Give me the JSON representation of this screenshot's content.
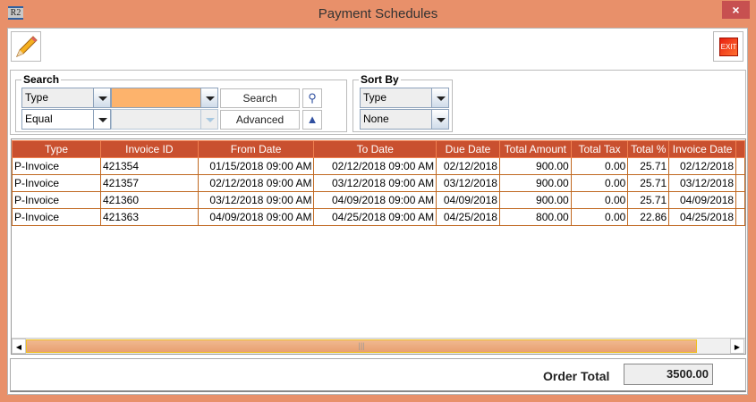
{
  "window": {
    "title": "Payment Schedules",
    "app_icon_text": "R2",
    "close": "×"
  },
  "toolbar": {
    "edit_icon": "pencil-icon",
    "exit_label": "EXIT"
  },
  "search": {
    "legend": "Search",
    "field": "Type",
    "value": "",
    "operator": "Equal",
    "value2": "",
    "search_label": "Search",
    "advanced_label": "Advanced",
    "accent": "#FDB36C"
  },
  "sort": {
    "legend": "Sort By",
    "field": "Type",
    "order": "None"
  },
  "table": {
    "headers": [
      "Type",
      "Invoice ID",
      "From Date",
      "To Date",
      "Due Date",
      "Total Amount",
      "Total Tax",
      "Total %",
      "Invoice Date"
    ],
    "rows": [
      [
        "P-Invoice",
        "421354",
        "01/15/2018 09:00 AM",
        "02/12/2018 09:00 AM",
        "02/12/2018",
        "900.00",
        "0.00",
        "25.71",
        "02/12/2018"
      ],
      [
        "P-Invoice",
        "421357",
        "02/12/2018 09:00 AM",
        "03/12/2018 09:00 AM",
        "03/12/2018",
        "900.00",
        "0.00",
        "25.71",
        "03/12/2018"
      ],
      [
        "P-Invoice",
        "421360",
        "03/12/2018 09:00 AM",
        "04/09/2018 09:00 AM",
        "04/09/2018",
        "900.00",
        "0.00",
        "25.71",
        "04/09/2018"
      ],
      [
        "P-Invoice",
        "421363",
        "04/09/2018 09:00 AM",
        "04/25/2018 09:00 AM",
        "04/25/2018",
        "800.00",
        "0.00",
        "22.86",
        "04/25/2018"
      ]
    ],
    "header_color": "#C9502F"
  },
  "footer": {
    "order_total_label": "Order Total",
    "order_total": "3500.00"
  }
}
